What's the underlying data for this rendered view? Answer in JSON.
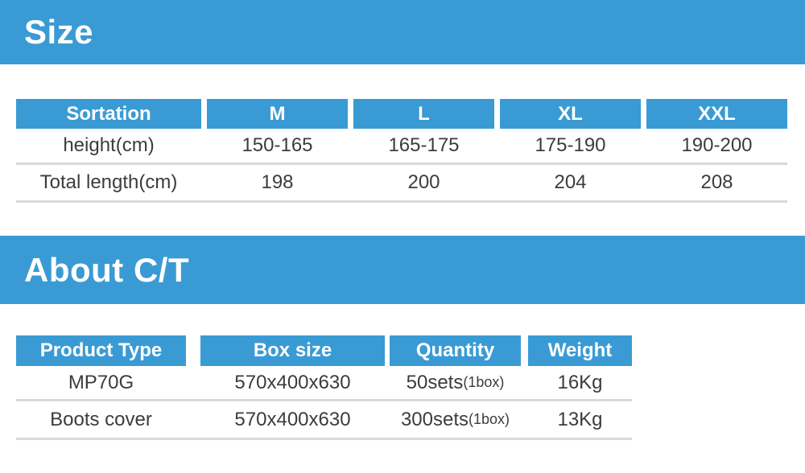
{
  "colors": {
    "accent": "#3A9BD4",
    "header_text": "#FFFFFF",
    "body_text": "#3C3C3C",
    "divider": "#D9D9D9"
  },
  "sections": [
    {
      "title": "Size",
      "table": {
        "headers": [
          "Sortation",
          "M",
          "L",
          "XL",
          "XXL"
        ],
        "rows": [
          {
            "cells": [
              "height(cm)",
              "150-165",
              "165-175",
              "175-190",
              "190-200"
            ]
          },
          {
            "cells": [
              "Total length(cm)",
              "198",
              "200",
              "204",
              "208"
            ]
          }
        ]
      }
    },
    {
      "title": "About C/T",
      "table": {
        "headers": [
          "Product Type",
          "Box size",
          "Quantity",
          "Weight"
        ],
        "rows": [
          {
            "cells": [
              "MP70G",
              "570x400x630",
              "50sets",
              "16Kg"
            ],
            "qty_suffix": "(1box)"
          },
          {
            "cells": [
              "Boots cover",
              "570x400x630",
              "300sets",
              "13Kg"
            ],
            "qty_suffix": "(1box)"
          }
        ]
      }
    }
  ]
}
